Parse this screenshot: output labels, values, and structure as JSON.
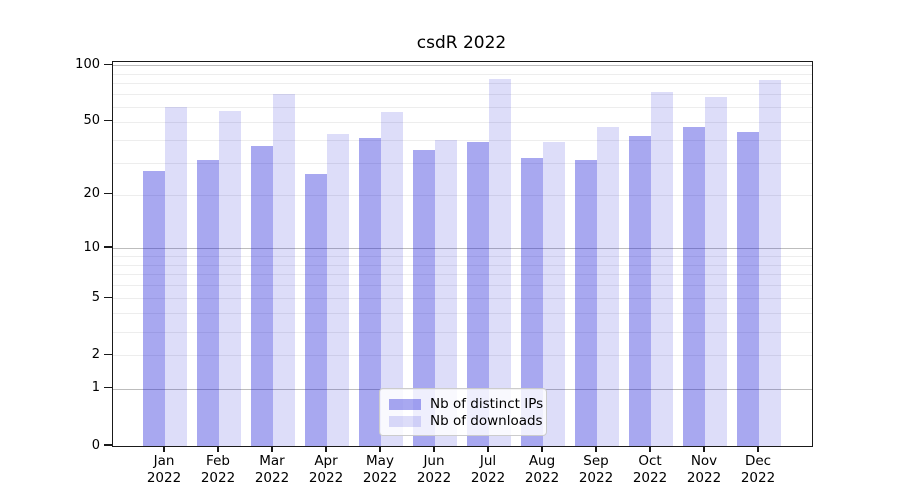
{
  "figure": {
    "background": "#ffffff"
  },
  "chart_data": {
    "type": "bar",
    "title": "csdR 2022",
    "categories": [
      "Jan",
      "Feb",
      "Mar",
      "Apr",
      "May",
      "Jun",
      "Jul",
      "Aug",
      "Sep",
      "Oct",
      "Nov",
      "Dec"
    ],
    "x_tick_year": "2022",
    "series": [
      {
        "name": "Nb of distinct IPs",
        "color": "rgba(13,13,213,0.36)",
        "color_flat": "#a8a8f0",
        "values": [
          27,
          31,
          37,
          26,
          41,
          35,
          39,
          32,
          31,
          42,
          47,
          44
        ]
      },
      {
        "name": "Nb of downloads",
        "color": "rgba(13,13,213,0.14)",
        "color_flat": "#dcdcf8",
        "values": [
          60,
          57,
          70,
          43,
          56,
          40,
          84,
          39,
          47,
          72,
          68,
          83
        ]
      }
    ],
    "y_scale": "log1p",
    "ylim": [
      0,
      104
    ],
    "yticks": [
      0,
      1,
      2,
      5,
      10,
      20,
      50,
      100
    ],
    "grid": {
      "major_lines": [
        1,
        10,
        100
      ],
      "minor_lines": [
        2,
        3,
        4,
        5,
        6,
        7,
        8,
        9,
        20,
        30,
        40,
        50,
        60,
        70,
        80,
        90
      ],
      "major_color": "#bdbdbd",
      "minor_color": "#ededed"
    },
    "legend": {
      "position": "lower center"
    },
    "axis_color": "#1a1a1a"
  }
}
